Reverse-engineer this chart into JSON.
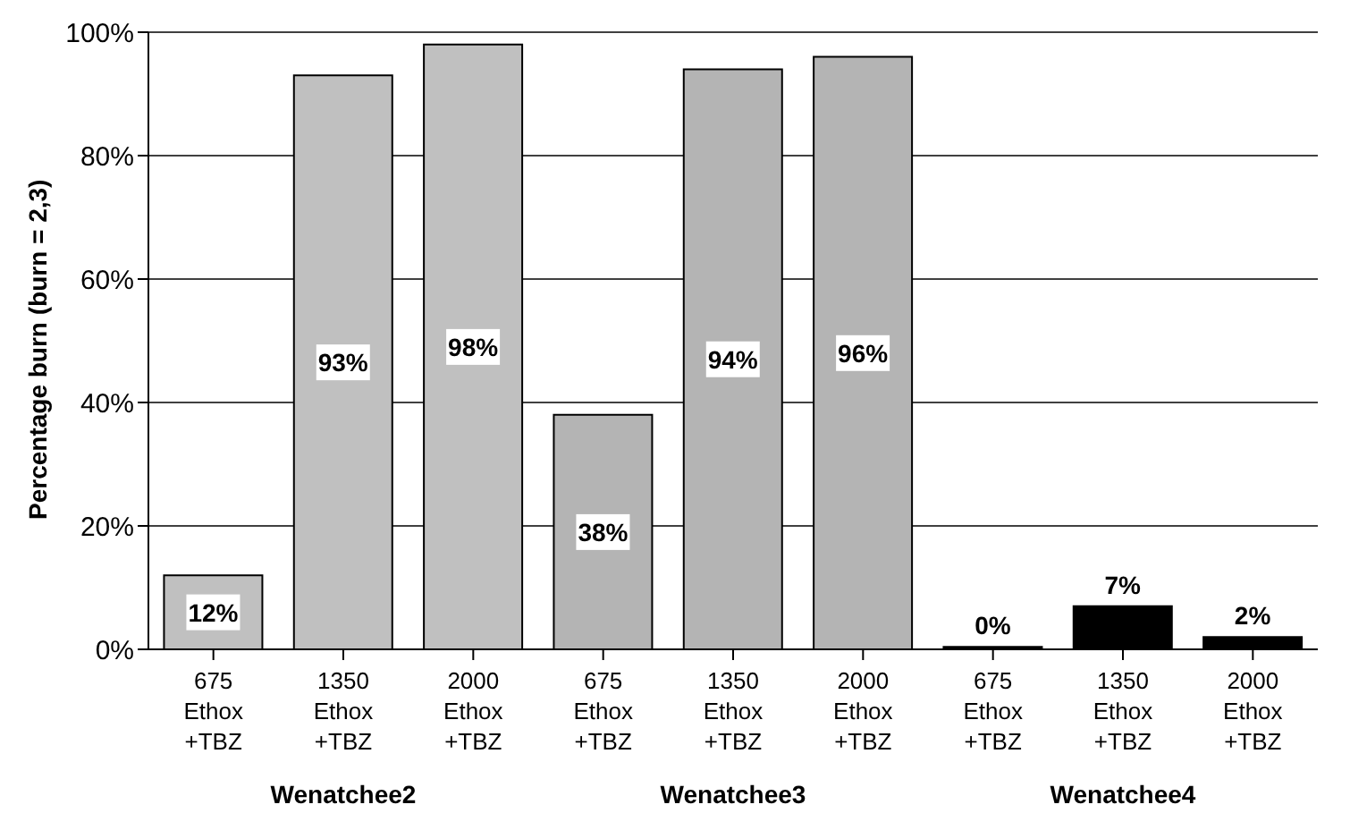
{
  "chart_data": {
    "type": "bar",
    "ylabel": "Percentage burn (burn = 2,3)",
    "categories": [
      "675 Ethox +TBZ",
      "1350 Ethox +TBZ",
      "2000 Ethox +TBZ",
      "675 Ethox +TBZ",
      "1350 Ethox +TBZ",
      "2000 Ethox +TBZ",
      "675 Ethox +TBZ",
      "1350 Ethox +TBZ",
      "2000 Ethox +TBZ"
    ],
    "values": [
      12,
      93,
      98,
      38,
      94,
      96,
      0.4,
      7,
      2
    ],
    "value_labels": [
      "12%",
      "93%",
      "98%",
      "38%",
      "94%",
      "96%",
      "0%",
      "7%",
      "2%"
    ],
    "colors": [
      "#c0c0c0",
      "#c0c0c0",
      "#c0c0c0",
      "#b4b4b4",
      "#b4b4b4",
      "#b4b4b4",
      "#000000",
      "#000000",
      "#000000"
    ],
    "ylim": [
      0,
      100
    ],
    "yticks": [
      {
        "value": 0,
        "label": "0%"
      },
      {
        "value": 20,
        "label": "20%"
      },
      {
        "value": 40,
        "label": "40%"
      },
      {
        "value": 60,
        "label": "60%"
      },
      {
        "value": 80,
        "label": "80%"
      },
      {
        "value": 100,
        "label": "100%"
      }
    ],
    "grid": "y",
    "annotations": [
      "Wenatchee2",
      "Wenatchee3",
      "Wenatchee4"
    ]
  }
}
